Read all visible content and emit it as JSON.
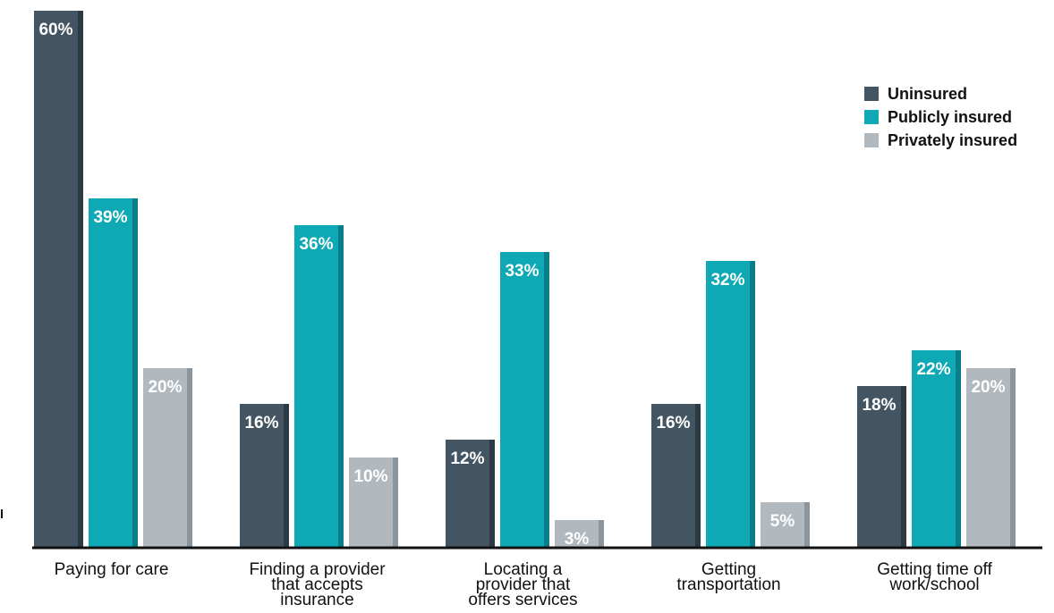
{
  "chart_data": {
    "type": "bar",
    "title": "",
    "xlabel": "",
    "ylabel": "",
    "ylim": [
      0,
      60
    ],
    "grid": false,
    "legend_position": "top-right",
    "categories": [
      [
        "Paying for care"
      ],
      [
        "Finding a provider",
        "that accepts",
        "insurance"
      ],
      [
        "Locating a",
        "provider that",
        "offers services"
      ],
      [
        "Getting",
        "transportation"
      ],
      [
        "Getting time off",
        "work/school"
      ]
    ],
    "series": [
      {
        "name": "Uninsured",
        "color": "#435563",
        "shade": "#2c3a44",
        "values": [
          60,
          16,
          12,
          16,
          18
        ],
        "labels": [
          "60%",
          "16%",
          "12%",
          "16%",
          "18%"
        ]
      },
      {
        "name": "Publicly insured",
        "color": "#0fa9b5",
        "shade": "#0a7e88",
        "values": [
          39,
          36,
          33,
          32,
          22
        ],
        "labels": [
          "39%",
          "36%",
          "33%",
          "32%",
          "22%"
        ]
      },
      {
        "name": "Privately insured",
        "color": "#b1b9bf",
        "shade": "#8a959d",
        "values": [
          20,
          10,
          3,
          5,
          20
        ],
        "labels": [
          "20%",
          "10%",
          "3%",
          "5%",
          "20%"
        ]
      }
    ]
  }
}
